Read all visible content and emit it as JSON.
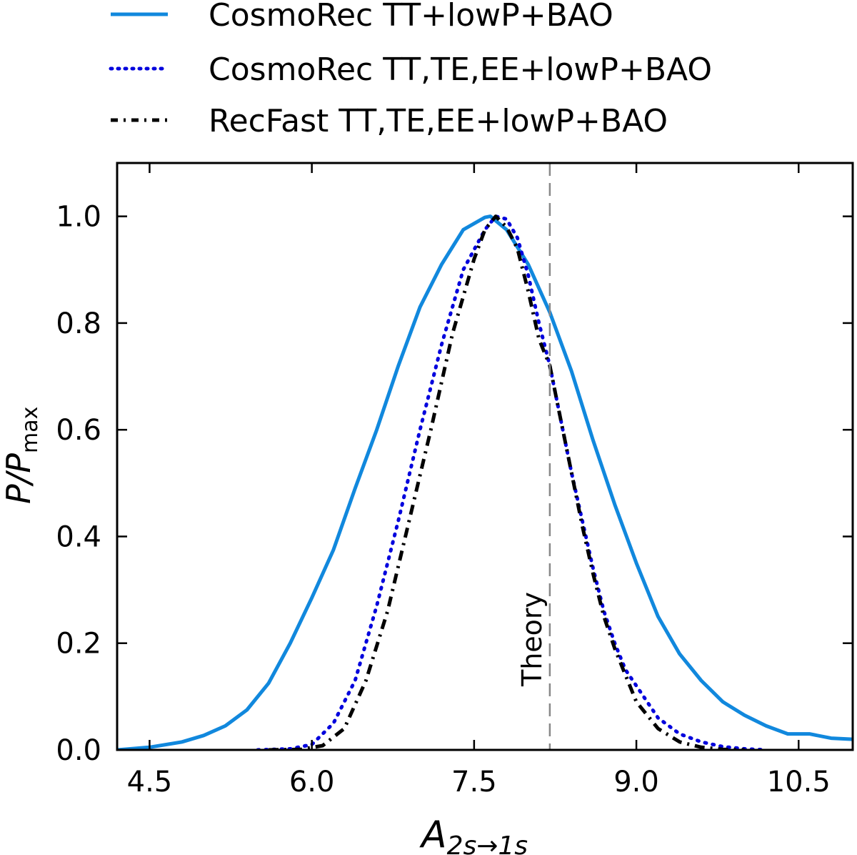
{
  "chart_data": {
    "type": "line",
    "title": "",
    "xlabel": "A",
    "xlabel_sub": "2s→1s",
    "ylabel": "P/P",
    "ylabel_sub": "max",
    "xlim": [
      4.2,
      11.0
    ],
    "ylim": [
      0.0,
      1.1
    ],
    "xticks": [
      4.5,
      6.0,
      7.5,
      9.0,
      10.5
    ],
    "xtick_labels": [
      "4.5",
      "6.0",
      "7.5",
      "9.0",
      "10.5"
    ],
    "yticks": [
      0.0,
      0.2,
      0.4,
      0.6,
      0.8,
      1.0
    ],
    "ytick_labels": [
      "0.0",
      "0.2",
      "0.4",
      "0.6",
      "0.8",
      "1.0"
    ],
    "grid": false,
    "legend_position": "above-plot",
    "series": [
      {
        "name": "CosmoRec TT+lowP+BAO",
        "style": "solid",
        "color": "#1188dd",
        "x": [
          4.2,
          4.5,
          4.8,
          5.0,
          5.2,
          5.4,
          5.6,
          5.8,
          6.0,
          6.2,
          6.4,
          6.6,
          6.8,
          7.0,
          7.2,
          7.4,
          7.6,
          7.65,
          7.8,
          8.0,
          8.2,
          8.4,
          8.6,
          8.8,
          9.0,
          9.2,
          9.4,
          9.6,
          9.8,
          10.0,
          10.2,
          10.4,
          10.6,
          10.8,
          11.0
        ],
        "y": [
          0.0,
          0.005,
          0.015,
          0.027,
          0.045,
          0.075,
          0.125,
          0.2,
          0.285,
          0.375,
          0.49,
          0.6,
          0.72,
          0.83,
          0.91,
          0.975,
          0.998,
          1.0,
          0.975,
          0.91,
          0.82,
          0.71,
          0.58,
          0.46,
          0.35,
          0.25,
          0.18,
          0.13,
          0.09,
          0.065,
          0.045,
          0.03,
          0.03,
          0.022,
          0.02
        ]
      },
      {
        "name": "CosmoRec TT,TE,EE+lowP+BAO",
        "style": "dotted",
        "color": "#0000dd",
        "x": [
          5.5,
          5.8,
          6.0,
          6.2,
          6.4,
          6.6,
          6.8,
          7.0,
          7.2,
          7.4,
          7.6,
          7.7,
          7.8,
          7.9,
          8.0,
          8.1,
          8.2,
          8.3,
          8.4,
          8.5,
          8.6,
          8.7,
          8.8,
          8.9,
          9.0,
          9.2,
          9.4,
          9.6,
          9.8,
          10.0,
          10.2
        ],
        "y": [
          0.0,
          0.002,
          0.01,
          0.05,
          0.13,
          0.27,
          0.43,
          0.6,
          0.76,
          0.9,
          0.975,
          1.0,
          0.995,
          0.96,
          0.89,
          0.8,
          0.72,
          0.62,
          0.52,
          0.43,
          0.34,
          0.26,
          0.2,
          0.15,
          0.12,
          0.06,
          0.03,
          0.015,
          0.006,
          0.002,
          0.0
        ]
      },
      {
        "name": "RecFast TT,TE,EE+lowP+BAO",
        "style": "dashdot",
        "color": "#000000",
        "x": [
          5.6,
          5.9,
          6.1,
          6.3,
          6.5,
          6.7,
          6.9,
          7.1,
          7.3,
          7.5,
          7.6,
          7.7,
          7.8,
          7.9,
          8.0,
          8.1,
          8.2,
          8.3,
          8.4,
          8.5,
          8.6,
          8.7,
          8.8,
          8.9,
          9.0,
          9.2,
          9.4,
          9.6,
          9.8,
          10.0
        ],
        "y": [
          0.0,
          0.001,
          0.008,
          0.04,
          0.13,
          0.26,
          0.43,
          0.6,
          0.78,
          0.92,
          0.975,
          1.0,
          0.98,
          0.94,
          0.86,
          0.77,
          0.72,
          0.62,
          0.52,
          0.42,
          0.33,
          0.25,
          0.19,
          0.14,
          0.09,
          0.04,
          0.015,
          0.005,
          0.001,
          0.0
        ]
      }
    ],
    "reference_line": {
      "x": 8.2,
      "label": "Theory",
      "style": "dashed",
      "color": "#888888"
    }
  }
}
